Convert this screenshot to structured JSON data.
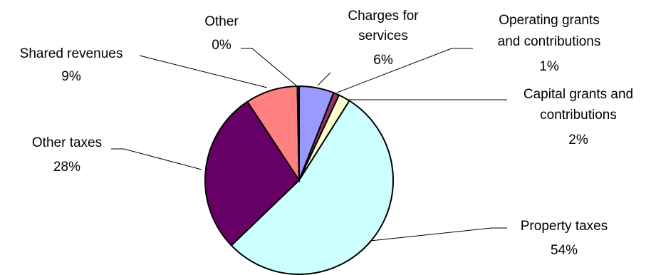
{
  "chart_data": {
    "type": "pie",
    "title": "",
    "start_angle_deg": 0,
    "direction": "clockwise",
    "slices": [
      {
        "label": "Charges for services",
        "value": 6,
        "display": "6%",
        "color": "#9999FF"
      },
      {
        "label": "Operating grants and contributions",
        "value": 1,
        "display": "1%",
        "color": "#993366"
      },
      {
        "label": "Capital grants and contributions",
        "value": 2,
        "display": "2%",
        "color": "#FFFFCC"
      },
      {
        "label": "Property taxes",
        "value": 54,
        "display": "54%",
        "color": "#CCFFFF"
      },
      {
        "label": "Other taxes",
        "value": 28,
        "display": "28%",
        "color": "#660066"
      },
      {
        "label": "Shared revenues",
        "value": 9,
        "display": "9%",
        "color": "#FF8080"
      },
      {
        "label": "Other",
        "value": 0.3,
        "display": "0%",
        "color": "#0066CC"
      }
    ],
    "legend": "none"
  }
}
